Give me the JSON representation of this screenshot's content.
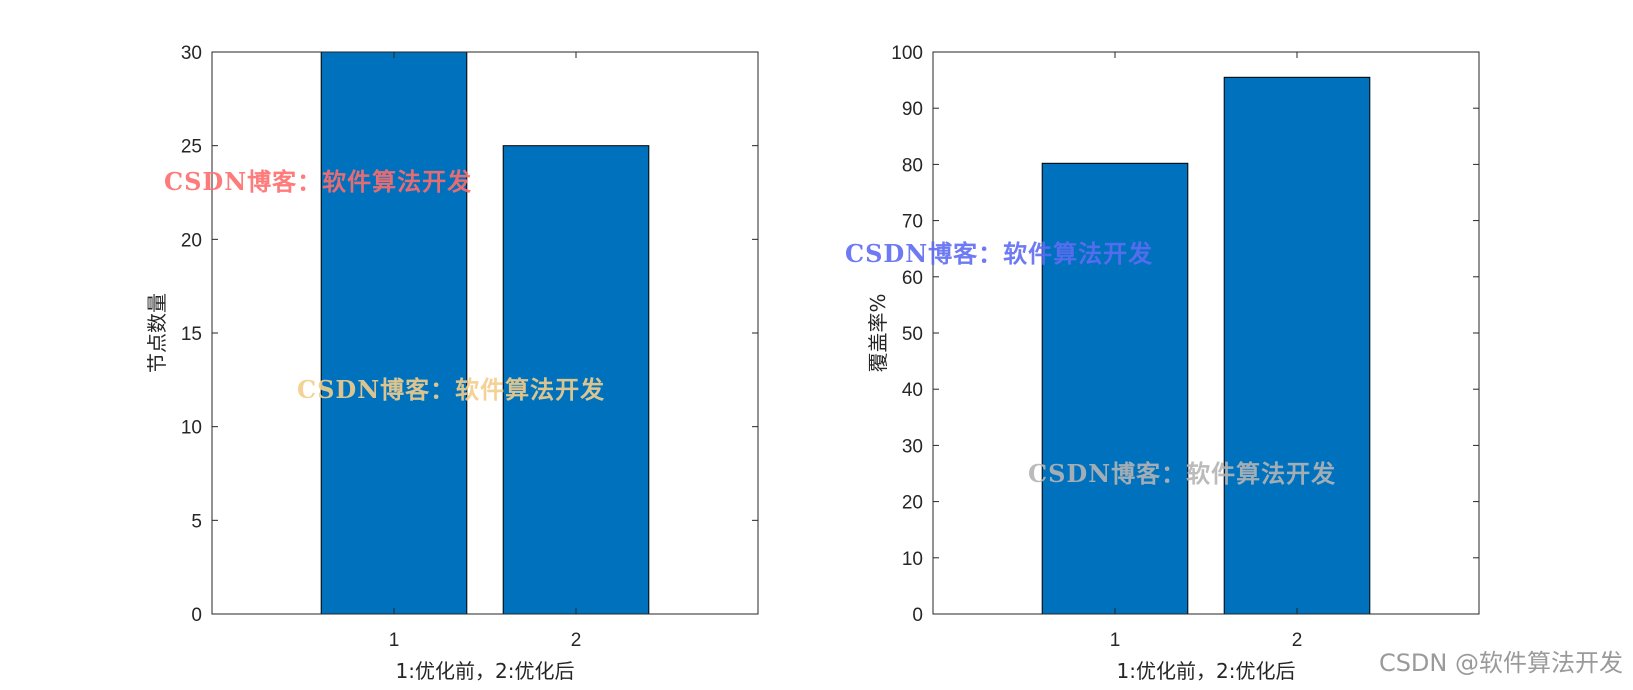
{
  "chart_data": [
    {
      "type": "bar",
      "categories": [
        "1",
        "2"
      ],
      "values": [
        30,
        25
      ],
      "xlabel": "1:优化前，2:优化后",
      "ylabel": "节点数量",
      "ylim": [
        0,
        30
      ],
      "yticks": [
        0,
        5,
        10,
        15,
        20,
        25,
        30
      ],
      "bar_color": "#0072BD",
      "grid": false
    },
    {
      "type": "bar",
      "categories": [
        "1",
        "2"
      ],
      "values": [
        80.2,
        95.5
      ],
      "xlabel": "1:优化前，2:优化后",
      "ylabel": "覆盖率%",
      "ylim": [
        0,
        100
      ],
      "yticks": [
        0,
        10,
        20,
        30,
        40,
        50,
        60,
        70,
        80,
        90,
        100
      ],
      "bar_color": "#0072BD",
      "grid": false
    }
  ],
  "watermarks": [
    {
      "text": "CSDN博客：软件算法开发",
      "color": "#ff6b6b"
    },
    {
      "text": "CSDN博客：软件算法开发",
      "color": "#f3cd8a"
    },
    {
      "text": "CSDN博客：软件算法开发",
      "color": "#5d6cf2"
    },
    {
      "text": "CSDN博客：软件算法开发",
      "color": "#b4b4b4"
    }
  ],
  "footer_watermark": "CSDN @软件算法开发"
}
